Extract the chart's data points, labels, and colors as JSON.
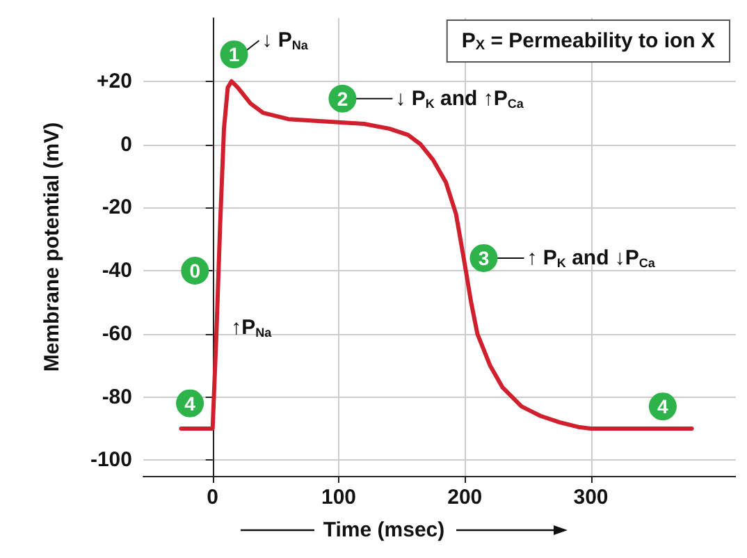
{
  "chart_data": {
    "type": "line",
    "xlabel": "Time (msec)",
    "ylabel": "Membrane potential (mV)",
    "x": [
      -25,
      0,
      3,
      6,
      9,
      12,
      15,
      20,
      30,
      40,
      60,
      80,
      100,
      120,
      140,
      155,
      165,
      175,
      185,
      193,
      200,
      205,
      210,
      220,
      230,
      245,
      260,
      275,
      290,
      300,
      340,
      380
    ],
    "series": [
      {
        "color": "#d0202e",
        "values": [
          -90,
          -90,
          -60,
          -25,
          5,
          18,
          20,
          18,
          13,
          10,
          8,
          7.5,
          7,
          6.5,
          5,
          3,
          0,
          -5,
          -12,
          -22,
          -38,
          -50,
          -60,
          -70,
          -77,
          -83,
          -86,
          -88,
          -89.5,
          -90,
          -90,
          -90
        ]
      }
    ],
    "xlim": [
      -55,
      415
    ],
    "ylim": [
      -105,
      40
    ],
    "xticks": [
      0,
      100,
      200,
      300
    ],
    "yticks": [
      {
        "value": 20,
        "label": "+20"
      },
      0,
      -20,
      -40,
      -60,
      -80,
      -100
    ],
    "grid": true,
    "marker": "none",
    "line_style": "solid",
    "annotations": [
      "P$_{X}$ = Permeability to ion X",
      {
        "text": "1",
        "x": 17,
        "y": 28.5
      },
      "↓ P$_{Na}$",
      {
        "text": "2",
        "x": 103,
        "y": 14.5
      },
      "↓ P$_{K}$ and ↑P$_{Ca}$",
      {
        "text": "3",
        "x": 215,
        "y": -36
      },
      "↑ P$_{K}$ and ↓P$_{Ca}$",
      {
        "text": "0",
        "x": -14,
        "y": -40
      },
      "↑P$_{Na}$",
      {
        "text": "4",
        "x": -18,
        "y": -82
      },
      {
        "text": "4",
        "x": 357,
        "y": -83
      }
    ]
  }
}
